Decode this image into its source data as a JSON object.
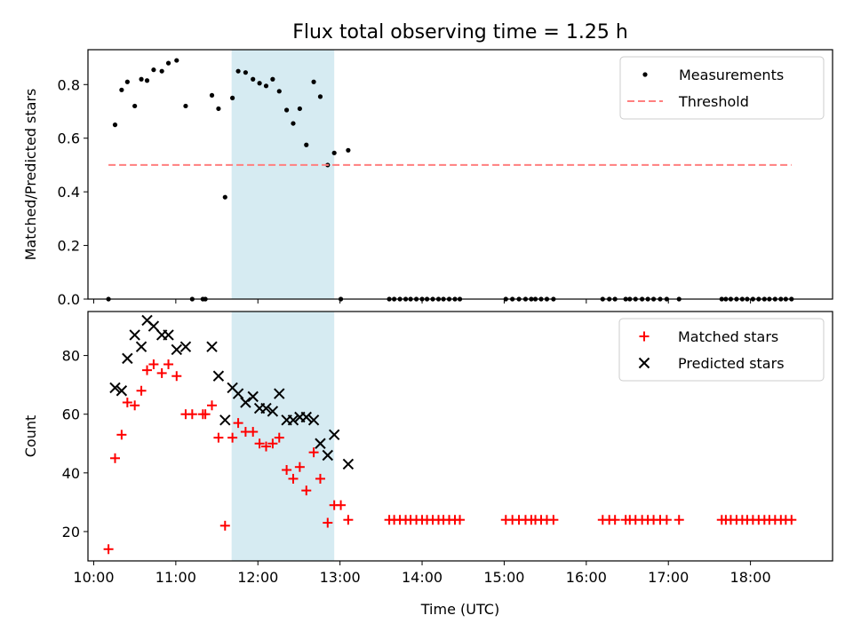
{
  "figure": {
    "title": "Flux total observing time = 1.25 h"
  },
  "chart_data": [
    {
      "type": "scatter",
      "panel": "top",
      "ylabel": "Matched/Predicted stars",
      "xlim": [
        9.93,
        19.0
      ],
      "ylim": [
        0.0,
        0.93
      ],
      "yticks": [
        {
          "v": 0.0,
          "label": "0.0"
        },
        {
          "v": 0.2,
          "label": "0.2"
        },
        {
          "v": 0.4,
          "label": "0.4"
        },
        {
          "v": 0.6,
          "label": "0.6"
        },
        {
          "v": 0.8,
          "label": "0.8"
        }
      ],
      "shaded_region": {
        "x": [
          11.68,
          12.93
        ],
        "color": "#add8e6"
      },
      "legend_position": "top-right",
      "series": [
        {
          "name": "Measurements",
          "kind": "points",
          "color": "#000000",
          "x": [
            10.18,
            10.26,
            10.34,
            10.41,
            10.5,
            10.58,
            10.65,
            10.73,
            10.83,
            10.91,
            11.01,
            11.12,
            11.2,
            11.33,
            11.36,
            11.44,
            11.52,
            11.6,
            11.69,
            11.76,
            11.85,
            11.94,
            12.02,
            12.1,
            12.18,
            12.26,
            12.35,
            12.43,
            12.51,
            12.59,
            12.68,
            12.76,
            12.85,
            12.93,
            13.01,
            13.1,
            13.6,
            13.66,
            13.73,
            13.8,
            13.86,
            13.93,
            14.0,
            14.06,
            14.13,
            14.2,
            14.26,
            14.33,
            14.4,
            14.46,
            15.02,
            15.1,
            15.18,
            15.26,
            15.33,
            15.38,
            15.45,
            15.52,
            15.6,
            16.2,
            16.28,
            16.35,
            16.48,
            16.53,
            16.6,
            16.68,
            16.75,
            16.82,
            16.9,
            16.98,
            17.13,
            17.65,
            17.7,
            17.76,
            17.83,
            17.9,
            17.96,
            18.03,
            18.1,
            18.17,
            18.23,
            18.3,
            18.37,
            18.43,
            18.5
          ],
          "y": [
            0,
            0.65,
            0.78,
            0.81,
            0.72,
            0.82,
            0.815,
            0.855,
            0.85,
            0.88,
            0.89,
            0.72,
            0,
            0,
            0,
            0.76,
            0.71,
            0.38,
            0.75,
            0.85,
            0.845,
            0.82,
            0.805,
            0.795,
            0.82,
            0.775,
            0.705,
            0.655,
            0.71,
            0.575,
            0.81,
            0.755,
            0.5,
            0.545,
            0,
            0.555,
            0,
            0,
            0,
            0,
            0,
            0,
            0,
            0,
            0,
            0,
            0,
            0,
            0,
            0,
            0,
            0,
            0,
            0,
            0,
            0,
            0,
            0,
            0,
            0,
            0,
            0,
            0,
            0,
            0,
            0,
            0,
            0,
            0,
            0,
            0,
            0,
            0,
            0,
            0,
            0,
            0,
            0,
            0,
            0,
            0,
            0,
            0,
            0,
            0
          ]
        },
        {
          "name": "Threshold",
          "kind": "dashed-line",
          "color": "#ff7f7f",
          "x": [
            10.18,
            18.5
          ],
          "y": [
            0.5,
            0.5
          ]
        }
      ]
    },
    {
      "type": "scatter",
      "panel": "bottom",
      "xlabel": "Time (UTC)",
      "ylabel": "Count",
      "xlim": [
        9.93,
        19.0
      ],
      "ylim": [
        10,
        95
      ],
      "xticks": [
        {
          "v": 10,
          "label": "10:00"
        },
        {
          "v": 11,
          "label": "11:00"
        },
        {
          "v": 12,
          "label": "12:00"
        },
        {
          "v": 13,
          "label": "13:00"
        },
        {
          "v": 14,
          "label": "14:00"
        },
        {
          "v": 15,
          "label": "15:00"
        },
        {
          "v": 16,
          "label": "16:00"
        },
        {
          "v": 17,
          "label": "17:00"
        },
        {
          "v": 18,
          "label": "18:00"
        }
      ],
      "yticks": [
        {
          "v": 20,
          "label": "20"
        },
        {
          "v": 40,
          "label": "40"
        },
        {
          "v": 60,
          "label": "60"
        },
        {
          "v": 80,
          "label": "80"
        }
      ],
      "shaded_region": {
        "x": [
          11.68,
          12.93
        ],
        "color": "#add8e6"
      },
      "legend_position": "top-right",
      "series": [
        {
          "name": "Matched stars",
          "kind": "plus",
          "color": "#ff0000",
          "x": [
            10.18,
            10.26,
            10.34,
            10.41,
            10.5,
            10.58,
            10.65,
            10.73,
            10.83,
            10.91,
            11.01,
            11.12,
            11.2,
            11.33,
            11.36,
            11.44,
            11.52,
            11.6,
            11.69,
            11.76,
            11.85,
            11.94,
            12.02,
            12.1,
            12.18,
            12.26,
            12.35,
            12.43,
            12.51,
            12.59,
            12.68,
            12.76,
            12.85,
            12.93,
            13.01,
            13.1,
            13.6,
            13.66,
            13.73,
            13.8,
            13.86,
            13.93,
            14.0,
            14.06,
            14.13,
            14.2,
            14.26,
            14.33,
            14.4,
            14.46,
            15.02,
            15.1,
            15.18,
            15.26,
            15.33,
            15.38,
            15.45,
            15.52,
            15.6,
            16.2,
            16.28,
            16.35,
            16.48,
            16.53,
            16.6,
            16.68,
            16.75,
            16.82,
            16.9,
            16.98,
            17.13,
            17.65,
            17.7,
            17.76,
            17.83,
            17.9,
            17.96,
            18.03,
            18.1,
            18.17,
            18.23,
            18.3,
            18.37,
            18.43,
            18.5
          ],
          "y": [
            14,
            45,
            53,
            64,
            63,
            68,
            75,
            77,
            74,
            77,
            73,
            60,
            60,
            60,
            60,
            63,
            52,
            22,
            52,
            57,
            54,
            54,
            50,
            49,
            50,
            52,
            41,
            38,
            42,
            34,
            47,
            38,
            23,
            29,
            29,
            24,
            24,
            24,
            24,
            24,
            24,
            24,
            24,
            24,
            24,
            24,
            24,
            24,
            24,
            24,
            24,
            24,
            24,
            24,
            24,
            24,
            24,
            24,
            24,
            24,
            24,
            24,
            24,
            24,
            24,
            24,
            24,
            24,
            24,
            24,
            24,
            24,
            24,
            24,
            24,
            24,
            24,
            24,
            24,
            24,
            24,
            24,
            24,
            24,
            24
          ]
        },
        {
          "name": "Predicted stars",
          "kind": "x",
          "color": "#000000",
          "x": [
            10.26,
            10.34,
            10.41,
            10.5,
            10.58,
            10.65,
            10.73,
            10.83,
            10.91,
            11.01,
            11.12,
            11.44,
            11.52,
            11.6,
            11.69,
            11.76,
            11.85,
            11.94,
            12.02,
            12.1,
            12.18,
            12.26,
            12.35,
            12.43,
            12.51,
            12.59,
            12.68,
            12.76,
            12.85,
            12.93,
            13.1
          ],
          "y": [
            69,
            68,
            79,
            87,
            83,
            92,
            90,
            87,
            87,
            82,
            83,
            83,
            73,
            58,
            69,
            67,
            64,
            66,
            62,
            62,
            61,
            67,
            58,
            58,
            59,
            59,
            58,
            50,
            46,
            53,
            43
          ]
        }
      ]
    }
  ]
}
